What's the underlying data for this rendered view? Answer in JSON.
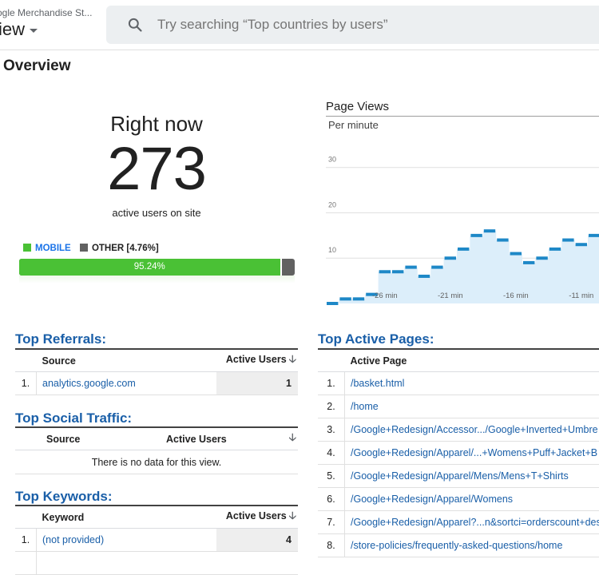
{
  "header": {
    "account_name": "ogle Merchandise St...",
    "view_label": "iew",
    "search_placeholder": "Try searching “Top countries by users”"
  },
  "page_title": "Overview",
  "right_now": {
    "label": "Right now",
    "count": "273",
    "subtitle": "active users on site",
    "legend": {
      "mobile_label": "MOBILE",
      "other_label": "OTHER [4.76%]"
    },
    "mobile_percent_label": "95.24%",
    "mobile_fraction": 0.9524,
    "colors": {
      "mobile": "#4ac135",
      "other": "#616161"
    }
  },
  "page_views": {
    "title": "Page Views",
    "subtitle": "Per minute"
  },
  "chart_data": {
    "type": "area",
    "title": "Page Views",
    "subtitle": "Per minute",
    "y_ticks": [
      "10",
      "20",
      "30"
    ],
    "ylim": [
      0,
      37
    ],
    "x_ticks": [
      "-26 min",
      "-21 min",
      "-16 min",
      "-11 min"
    ],
    "x": [
      -30,
      -29,
      -28,
      -27,
      -26,
      -25,
      -24,
      -23,
      -22,
      -21,
      -20,
      -19,
      -18,
      -17,
      -16,
      -15,
      -14,
      -13,
      -12,
      -11,
      -10
    ],
    "values": [
      0,
      1,
      1,
      2,
      7,
      7,
      8,
      6,
      8,
      10,
      12,
      15,
      16,
      14,
      11,
      9,
      10,
      12,
      14,
      13,
      15
    ],
    "color": "#1e88c7",
    "grid": true
  },
  "referrals": {
    "title": "Top Referrals:",
    "col_source": "Source",
    "col_users": "Active Users",
    "rows": [
      {
        "idx": "1.",
        "source": "analytics.google.com",
        "users": "1"
      }
    ]
  },
  "social": {
    "title": "Top Social Traffic:",
    "col_source": "Source",
    "col_users": "Active Users",
    "empty_text": "There is no data for this view."
  },
  "keywords": {
    "title": "Top Keywords:",
    "col_keyword": "Keyword",
    "col_users": "Active Users",
    "rows": [
      {
        "idx": "1.",
        "keyword": "(not provided)",
        "users": "4"
      }
    ]
  },
  "active_pages": {
    "title": "Top Active Pages:",
    "col_page": "Active Page",
    "rows": [
      {
        "idx": "1.",
        "page": "/basket.html"
      },
      {
        "idx": "2.",
        "page": "/home"
      },
      {
        "idx": "3.",
        "page": "/Google+Redesign/Accessor.../Google+Inverted+Umbre"
      },
      {
        "idx": "4.",
        "page": "/Google+Redesign/Apparel/...+Womens+Puff+Jacket+B"
      },
      {
        "idx": "5.",
        "page": "/Google+Redesign/Apparel/Mens/Mens+T+Shirts"
      },
      {
        "idx": "6.",
        "page": "/Google+Redesign/Apparel/Womens"
      },
      {
        "idx": "7.",
        "page": "/Google+Redesign/Apparel?...n&sortci=orderscount+des"
      },
      {
        "idx": "8.",
        "page": "/store-policies/frequently-asked-questions/home"
      }
    ]
  }
}
